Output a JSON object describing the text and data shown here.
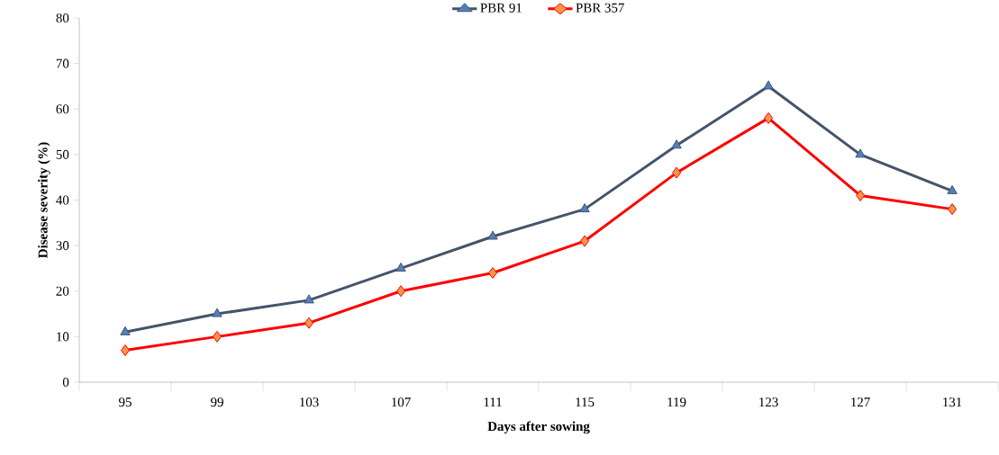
{
  "chart_data": {
    "type": "line",
    "xlabel": "Days after sowing",
    "ylabel": "Disease severity (%)",
    "categories": [
      "95",
      "99",
      "103",
      "107",
      "111",
      "115",
      "119",
      "123",
      "127",
      "131"
    ],
    "series": [
      {
        "name": "PBR 91",
        "color": "#44546a",
        "marker": "triangle",
        "values": [
          11,
          15,
          18,
          25,
          32,
          38,
          52,
          65,
          50,
          42
        ]
      },
      {
        "name": "PBR 357",
        "color": "#ff0000",
        "marker": "diamond",
        "values": [
          7,
          10,
          13,
          20,
          24,
          31,
          46,
          58,
          41,
          38
        ]
      }
    ],
    "ylim": [
      0,
      80
    ],
    "yticks": [
      0,
      10,
      20,
      30,
      40,
      50,
      60,
      70,
      80
    ],
    "grid": false,
    "legend": "top",
    "line_style": "solid"
  }
}
